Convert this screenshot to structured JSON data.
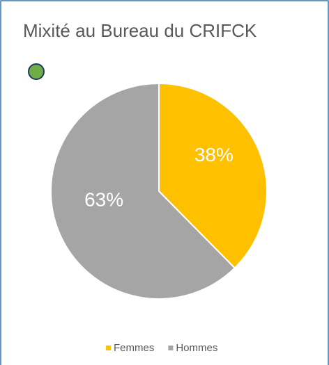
{
  "chart_data": {
    "type": "pie",
    "title": "Mixité au Bureau du CRIFCK",
    "categories": [
      "Femmes",
      "Hommes"
    ],
    "values": [
      38,
      63
    ],
    "value_labels": [
      "38%",
      "63%"
    ],
    "colors": [
      "#ffc000",
      "#a5a5a5"
    ],
    "legend": "bottom"
  }
}
